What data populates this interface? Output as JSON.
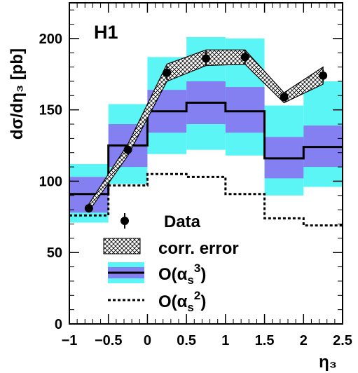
{
  "chart_data": {
    "type": "line",
    "title": "H1",
    "xlabel": "η₃",
    "ylabel": "dσ/dη₃ [pb]",
    "xlim": [
      -1,
      2.5
    ],
    "ylim": [
      0,
      225
    ],
    "x_ticks": [
      -1,
      -0.5,
      0,
      0.5,
      1,
      1.5,
      2,
      2.5
    ],
    "x_tick_labels": [
      "−1",
      "−0.5",
      "0",
      "0.5",
      "1",
      "1.5",
      "2",
      "2.5"
    ],
    "y_ticks": [
      0,
      50,
      100,
      150,
      200
    ],
    "y_tick_labels": [
      "0",
      "50",
      "100",
      "150",
      "200"
    ],
    "grid": false,
    "legend_position": "bottom-left",
    "bins": [
      {
        "low": -1.0,
        "high": -0.5
      },
      {
        "low": -0.5,
        "high": 0.0
      },
      {
        "low": 0.0,
        "high": 0.5
      },
      {
        "low": 0.5,
        "high": 1.0
      },
      {
        "low": 1.0,
        "high": 1.5
      },
      {
        "low": 1.5,
        "high": 2.0
      },
      {
        "low": 2.0,
        "high": 2.5
      }
    ],
    "series": [
      {
        "name": "Data",
        "kind": "points",
        "x": [
          -0.75,
          -0.25,
          0.25,
          0.75,
          1.25,
          1.75,
          2.25
        ],
        "y": [
          81,
          122,
          176,
          186,
          187,
          159,
          174
        ],
        "yerr": [
          3,
          3,
          5,
          5,
          5,
          3,
          4
        ]
      },
      {
        "name": "corr. error",
        "kind": "band",
        "x": [
          -0.75,
          -0.25,
          0.25,
          0.75,
          1.25,
          1.75,
          2.25
        ],
        "lower": [
          79,
          118,
          170,
          181,
          182,
          155,
          168
        ],
        "upper": [
          84,
          126,
          182,
          192,
          192,
          162,
          180
        ]
      },
      {
        "name": "O(αs3)",
        "kind": "histogram",
        "values": [
          91,
          125,
          149,
          155,
          149,
          116,
          124
        ],
        "inner_lower": [
          78,
          110,
          134,
          140,
          134,
          102,
          110
        ],
        "inner_upper": [
          103,
          140,
          164,
          170,
          166,
          131,
          139
        ],
        "outer_lower": [
          71,
          98,
          119,
          122,
          118,
          90,
          96
        ],
        "outer_upper": [
          112,
          154,
          187,
          201,
          200,
          153,
          170
        ]
      },
      {
        "name": "O(αs2)",
        "kind": "histogram-dashed",
        "values": [
          76,
          97,
          105,
          103,
          91,
          74,
          69
        ]
      }
    ],
    "colors": {
      "outer_band": "#5cf5f5",
      "inner_band": "#8480f2",
      "line": "#000000"
    },
    "legend": {
      "data": "Data",
      "corr": "corr. error",
      "nlo_prefix": "O(α",
      "nlo_sub": "s",
      "nlo_sup": "3",
      "nlo_suffix": ")",
      "lo_prefix": "O(α",
      "lo_sub": "s",
      "lo_sup": "2",
      "lo_suffix": ")"
    }
  }
}
